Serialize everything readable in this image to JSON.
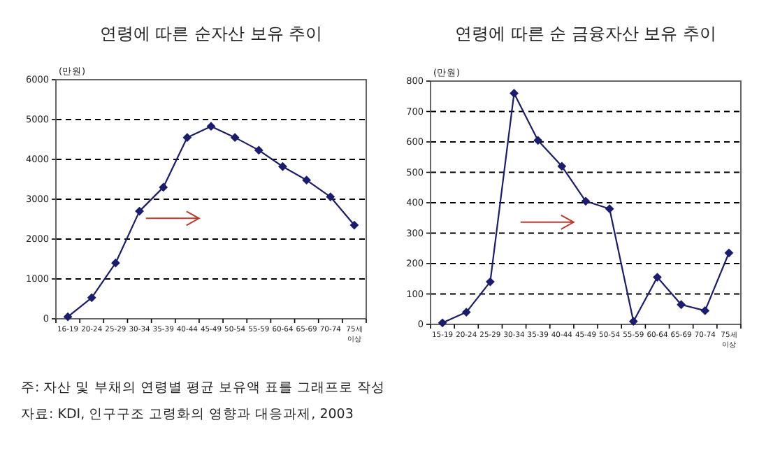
{
  "chart_data": [
    {
      "type": "line",
      "title": "연령에 따른 순자산 보유 추이",
      "ylabel": "(만원)",
      "categories": [
        "16-19",
        "20-24",
        "25-29",
        "30-34",
        "35-39",
        "40-44",
        "45-49",
        "50-54",
        "55-59",
        "60-64",
        "65-69",
        "70-74",
        "75세 이상"
      ],
      "series": [
        {
          "color": "#1c1c6e",
          "values": [
            50,
            530,
            1400,
            2700,
            3300,
            4550,
            4830,
            4550,
            4230,
            3820,
            3480,
            3060,
            2350
          ]
        }
      ],
      "ylim": [
        0,
        6000
      ],
      "yticks": [
        0,
        1000,
        2000,
        3000,
        4000,
        5000,
        6000
      ],
      "grid": "y",
      "marker": "diamond",
      "line_style": "solid",
      "annotations": [
        "주: 자산 및 부채의 연령별 평균 보유액 표를 그래프로 작성",
        "자료: KDI, 인구구조 고령화의 영향과 대응과제, 2003"
      ]
    },
    {
      "type": "line",
      "title": "연령에 따른 순 금융자산 보유 추이",
      "ylabel": "(만원)",
      "categories": [
        "15-19",
        "20-24",
        "25-29",
        "30-34",
        "35-39",
        "40-44",
        "45-49",
        "50-54",
        "55-59",
        "60-64",
        "65-69",
        "70-74",
        "75세 이상"
      ],
      "series": [
        {
          "color": "#1c1c6e",
          "values": [
            5,
            40,
            140,
            760,
            605,
            520,
            405,
            380,
            10,
            155,
            65,
            45,
            235
          ]
        }
      ],
      "ylim": [
        0,
        800
      ],
      "yticks": [
        0,
        100,
        200,
        300,
        400,
        500,
        600,
        700,
        800
      ],
      "grid": "y",
      "marker": "diamond",
      "line_style": "solid"
    }
  ]
}
